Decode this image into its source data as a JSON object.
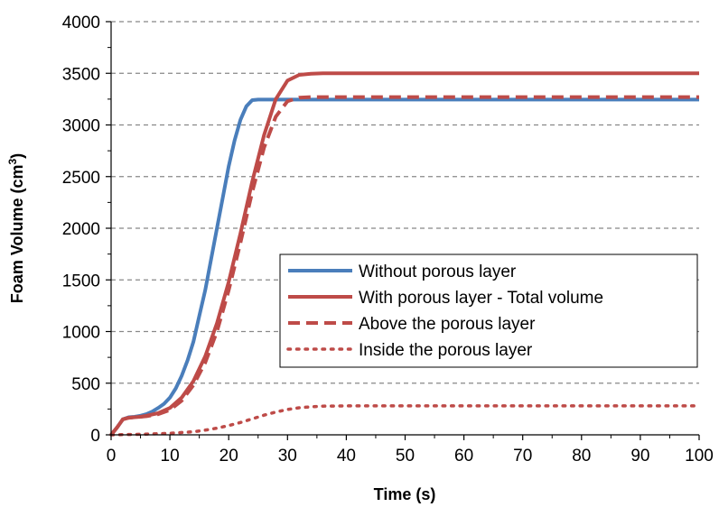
{
  "chart_data": {
    "type": "line",
    "xlabel": "Time (s)",
    "ylabel_main": "Foam Volume (cm",
    "ylabel_sup": "3",
    "ylabel_end": ")",
    "xlim": [
      0,
      100
    ],
    "ylim": [
      0,
      4000
    ],
    "xticks": [
      0,
      10,
      20,
      30,
      40,
      50,
      60,
      70,
      80,
      90,
      100
    ],
    "yticks": [
      0,
      500,
      1000,
      1500,
      2000,
      2500,
      3000,
      3500,
      4000
    ],
    "grid": "horizontal dashed",
    "legend_position": "center-right",
    "series": [
      {
        "name": "Without porous layer",
        "color": "#4a7ebb",
        "dash": "solid",
        "x": [
          0,
          1,
          2,
          3,
          4,
          5,
          6,
          7,
          8,
          9,
          10,
          11,
          12,
          13,
          14,
          15,
          16,
          17,
          18,
          19,
          20,
          21,
          22,
          23,
          24,
          25,
          26,
          30,
          40,
          50,
          60,
          70,
          80,
          90,
          100
        ],
        "y": [
          0,
          70,
          150,
          170,
          175,
          185,
          200,
          225,
          260,
          300,
          360,
          450,
          570,
          720,
          900,
          1150,
          1400,
          1700,
          2000,
          2300,
          2600,
          2850,
          3050,
          3180,
          3240,
          3245,
          3245,
          3245,
          3245,
          3245,
          3245,
          3245,
          3245,
          3245,
          3245
        ]
      },
      {
        "name": "With porous layer - Total volume",
        "color": "#be4b48",
        "dash": "solid",
        "x": [
          0,
          1,
          2,
          3,
          4,
          5,
          6,
          8,
          10,
          12,
          14,
          16,
          18,
          20,
          22,
          24,
          26,
          28,
          30,
          32,
          34,
          36,
          40,
          50,
          60,
          70,
          80,
          90,
          100
        ],
        "y": [
          0,
          70,
          150,
          165,
          170,
          175,
          185,
          210,
          260,
          360,
          520,
          760,
          1080,
          1480,
          1950,
          2450,
          2900,
          3250,
          3430,
          3485,
          3495,
          3500,
          3500,
          3500,
          3500,
          3500,
          3500,
          3500,
          3500
        ]
      },
      {
        "name": "Above the porous layer",
        "color": "#be4b48",
        "dash": "dashed",
        "x": [
          0,
          1,
          2,
          3,
          4,
          5,
          6,
          8,
          10,
          12,
          14,
          16,
          18,
          20,
          22,
          24,
          26,
          28,
          30,
          32,
          34,
          36,
          40,
          50,
          60,
          70,
          80,
          90,
          100
        ],
        "y": [
          0,
          70,
          150,
          165,
          170,
          175,
          180,
          200,
          240,
          330,
          480,
          700,
          1000,
          1400,
          1860,
          2350,
          2780,
          3080,
          3230,
          3265,
          3270,
          3270,
          3270,
          3270,
          3270,
          3270,
          3270,
          3270,
          3270
        ]
      },
      {
        "name": "Inside the porous layer",
        "color": "#be4b48",
        "dash": "dotted",
        "x": [
          0,
          5,
          10,
          14,
          16,
          18,
          20,
          22,
          24,
          26,
          28,
          30,
          32,
          34,
          36,
          40,
          50,
          60,
          70,
          80,
          90,
          100
        ],
        "y": [
          0,
          5,
          15,
          30,
          45,
          65,
          90,
          120,
          155,
          190,
          220,
          245,
          262,
          272,
          278,
          280,
          280,
          280,
          280,
          280,
          280,
          280
        ]
      }
    ]
  }
}
